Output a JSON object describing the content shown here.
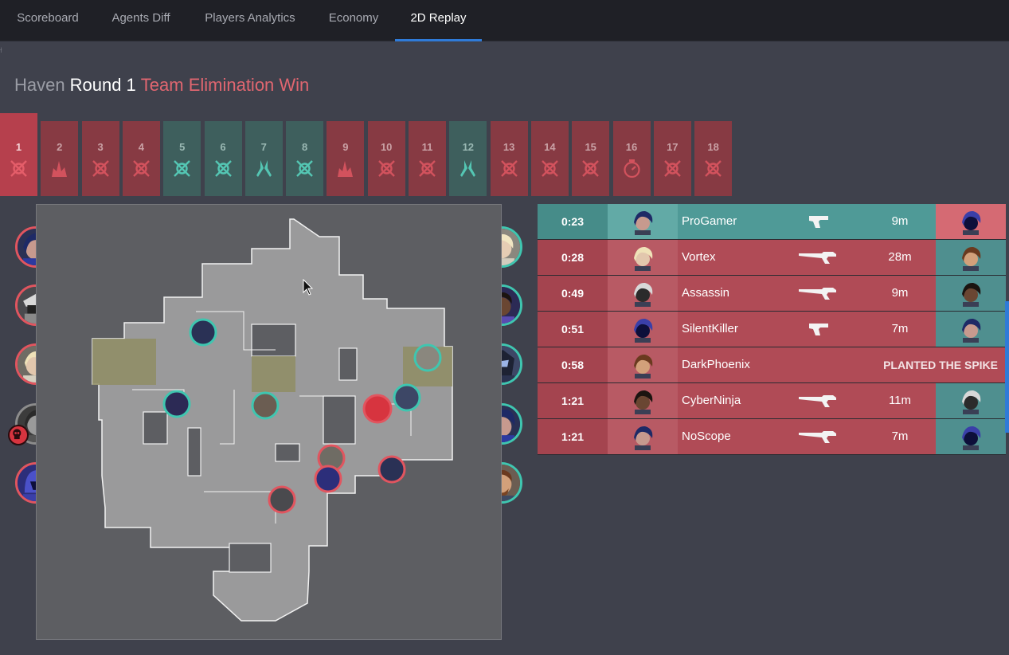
{
  "tabs": [
    {
      "label": "Scoreboard",
      "active": false
    },
    {
      "label": "Agents Diff",
      "active": false
    },
    {
      "label": "Players Analytics",
      "active": false
    },
    {
      "label": "Economy",
      "active": false
    },
    {
      "label": "2D Replay",
      "active": true
    }
  ],
  "header": {
    "map": "Haven",
    "round": "Round 1",
    "result": "Team Elimination Win"
  },
  "rounds": [
    {
      "num": "1",
      "side": "red",
      "icon": "elimination-icon",
      "selected": true
    },
    {
      "num": "2",
      "side": "red",
      "icon": "spike-detonate-icon"
    },
    {
      "num": "3",
      "side": "red",
      "icon": "elimination-icon"
    },
    {
      "num": "4",
      "side": "red",
      "icon": "elimination-icon"
    },
    {
      "num": "5",
      "side": "teal",
      "icon": "elimination-icon"
    },
    {
      "num": "6",
      "side": "teal",
      "icon": "elimination-icon"
    },
    {
      "num": "7",
      "side": "teal",
      "icon": "defuse-icon"
    },
    {
      "num": "8",
      "side": "teal",
      "icon": "elimination-icon"
    },
    {
      "num": "9",
      "side": "red",
      "icon": "spike-detonate-icon"
    },
    {
      "num": "10",
      "side": "red",
      "icon": "elimination-icon"
    },
    {
      "num": "11",
      "side": "red",
      "icon": "elimination-icon"
    },
    {
      "num": "12",
      "side": "teal",
      "icon": "defuse-icon"
    },
    {
      "num": "13",
      "side": "red",
      "icon": "elimination-icon"
    },
    {
      "num": "14",
      "side": "red",
      "icon": "elimination-icon"
    },
    {
      "num": "15",
      "side": "red",
      "icon": "elimination-icon"
    },
    {
      "num": "16",
      "side": "red",
      "icon": "timer-icon"
    },
    {
      "num": "17",
      "side": "red",
      "icon": "elimination-icon"
    },
    {
      "num": "18",
      "side": "red",
      "icon": "elimination-icon"
    }
  ],
  "colors": {
    "red": "#e1555f",
    "teal": "#3fc6b0",
    "accent": "#2f7bd8",
    "background": "#3f414c"
  },
  "kill_feed": [
    {
      "time": "0:23",
      "side": "teal",
      "killer": "ProGamer",
      "weapon": "pistol-icon",
      "distance": "9m",
      "victim_side": "red"
    },
    {
      "time": "0:28",
      "side": "red",
      "killer": "Vortex",
      "weapon": "rifle-icon",
      "distance": "28m",
      "victim_side": "teal"
    },
    {
      "time": "0:49",
      "side": "red",
      "killer": "Assassin",
      "weapon": "rifle-icon",
      "distance": "9m",
      "victim_side": "teal"
    },
    {
      "time": "0:51",
      "side": "red",
      "killer": "SilentKiller",
      "weapon": "pistol-icon",
      "distance": "7m",
      "victim_side": "teal"
    },
    {
      "time": "0:58",
      "side": "red",
      "killer": "DarkPhoenix",
      "event": "PLANTED THE SPIKE"
    },
    {
      "time": "1:21",
      "side": "red",
      "killer": "CyberNinja",
      "weapon": "rifle-icon",
      "distance": "11m",
      "victim_side": "teal"
    },
    {
      "time": "1:21",
      "side": "red",
      "killer": "NoScope",
      "weapon": "rifle-icon",
      "distance": "7m",
      "victim_side": "teal"
    }
  ]
}
